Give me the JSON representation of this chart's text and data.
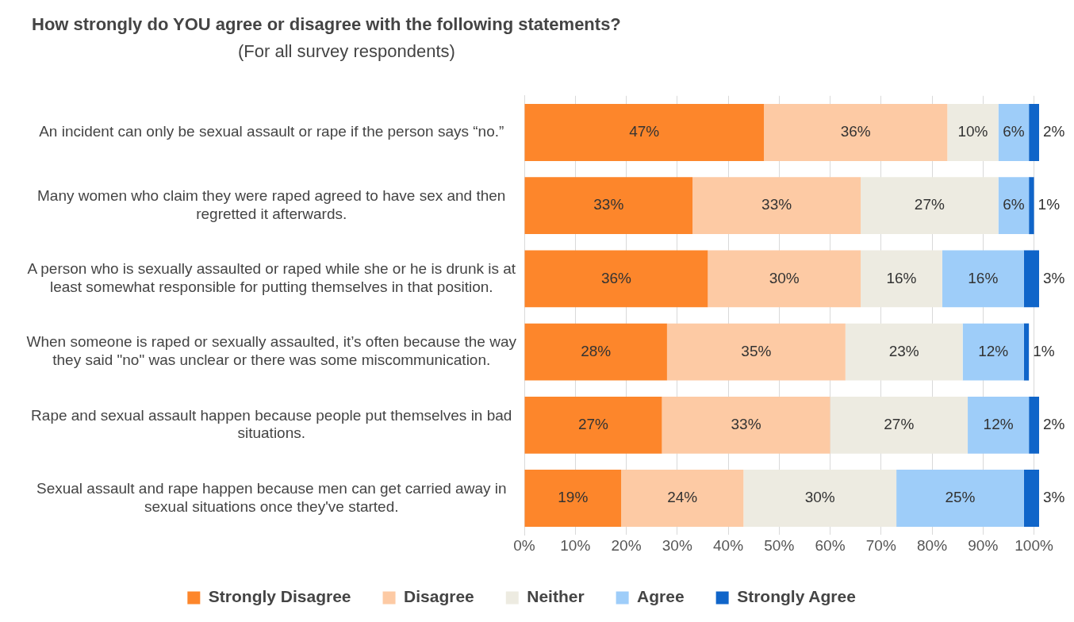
{
  "chart_data": {
    "type": "bar",
    "orientation": "horizontal",
    "stacked": true,
    "title": "How strongly do YOU agree or disagree with the following statements?",
    "subtitle": "(For all survey respondents)",
    "categories": [
      "An incident can only be sexual assault or rape if the person says “no.”",
      "Many women who claim they were raped agreed to have sex and then regretted it afterwards.",
      "A person who is sexually assaulted or raped while she or he is drunk is at least somewhat responsible for putting themselves in that position.",
      "When someone is raped or sexually assaulted, it’s often because the way they said \"no\" was unclear or there was some miscommunication.",
      "Rape and sexual assault happen because people put themselves in bad situations.",
      "Sexual assault and rape happen because men can get carried away in sexual situations once they've started."
    ],
    "series": [
      {
        "name": "Strongly Disagree",
        "color": "#fd862b",
        "values": [
          47,
          33,
          36,
          28,
          27,
          19
        ],
        "value_labels": [
          "47%",
          "33%",
          "36%",
          "28%",
          "27%",
          "19%"
        ]
      },
      {
        "name": "Disagree",
        "color": "#fdcaa4",
        "values": [
          36,
          33,
          30,
          35,
          33,
          24
        ],
        "value_labels": [
          "36%",
          "33%",
          "30%",
          "35%",
          "33%",
          "24%"
        ]
      },
      {
        "name": "Neither",
        "color": "#edebe1",
        "values": [
          10,
          27,
          16,
          23,
          27,
          30
        ],
        "value_labels": [
          "10%",
          "27%",
          "16%",
          "23%",
          "27%",
          "30%"
        ]
      },
      {
        "name": "Agree",
        "color": "#9ecdf9",
        "values": [
          6,
          6,
          16,
          12,
          12,
          25
        ],
        "value_labels": [
          "6%",
          "6%",
          "16%",
          "12%",
          "12%",
          "25%"
        ]
      },
      {
        "name": "Strongly Agree",
        "color": "#1065c9",
        "values": [
          2,
          1,
          3,
          1,
          2,
          3
        ],
        "value_labels": [
          "2%",
          "1%",
          "3%",
          "1%",
          "2%",
          "3%"
        ]
      }
    ],
    "xlim": [
      0,
      101
    ],
    "xticks": [
      {
        "value": 0,
        "label": "0%"
      },
      {
        "value": 10,
        "label": "10%"
      },
      {
        "value": 20,
        "label": "20%"
      },
      {
        "value": 30,
        "label": "30%"
      },
      {
        "value": 40,
        "label": "40%"
      },
      {
        "value": 50,
        "label": "50%"
      },
      {
        "value": 60,
        "label": "60%"
      },
      {
        "value": 70,
        "label": "70%"
      },
      {
        "value": 80,
        "label": "80%"
      },
      {
        "value": 90,
        "label": "90%"
      },
      {
        "value": 100,
        "label": "100%"
      }
    ],
    "grid": "x",
    "legend": "bottom"
  }
}
